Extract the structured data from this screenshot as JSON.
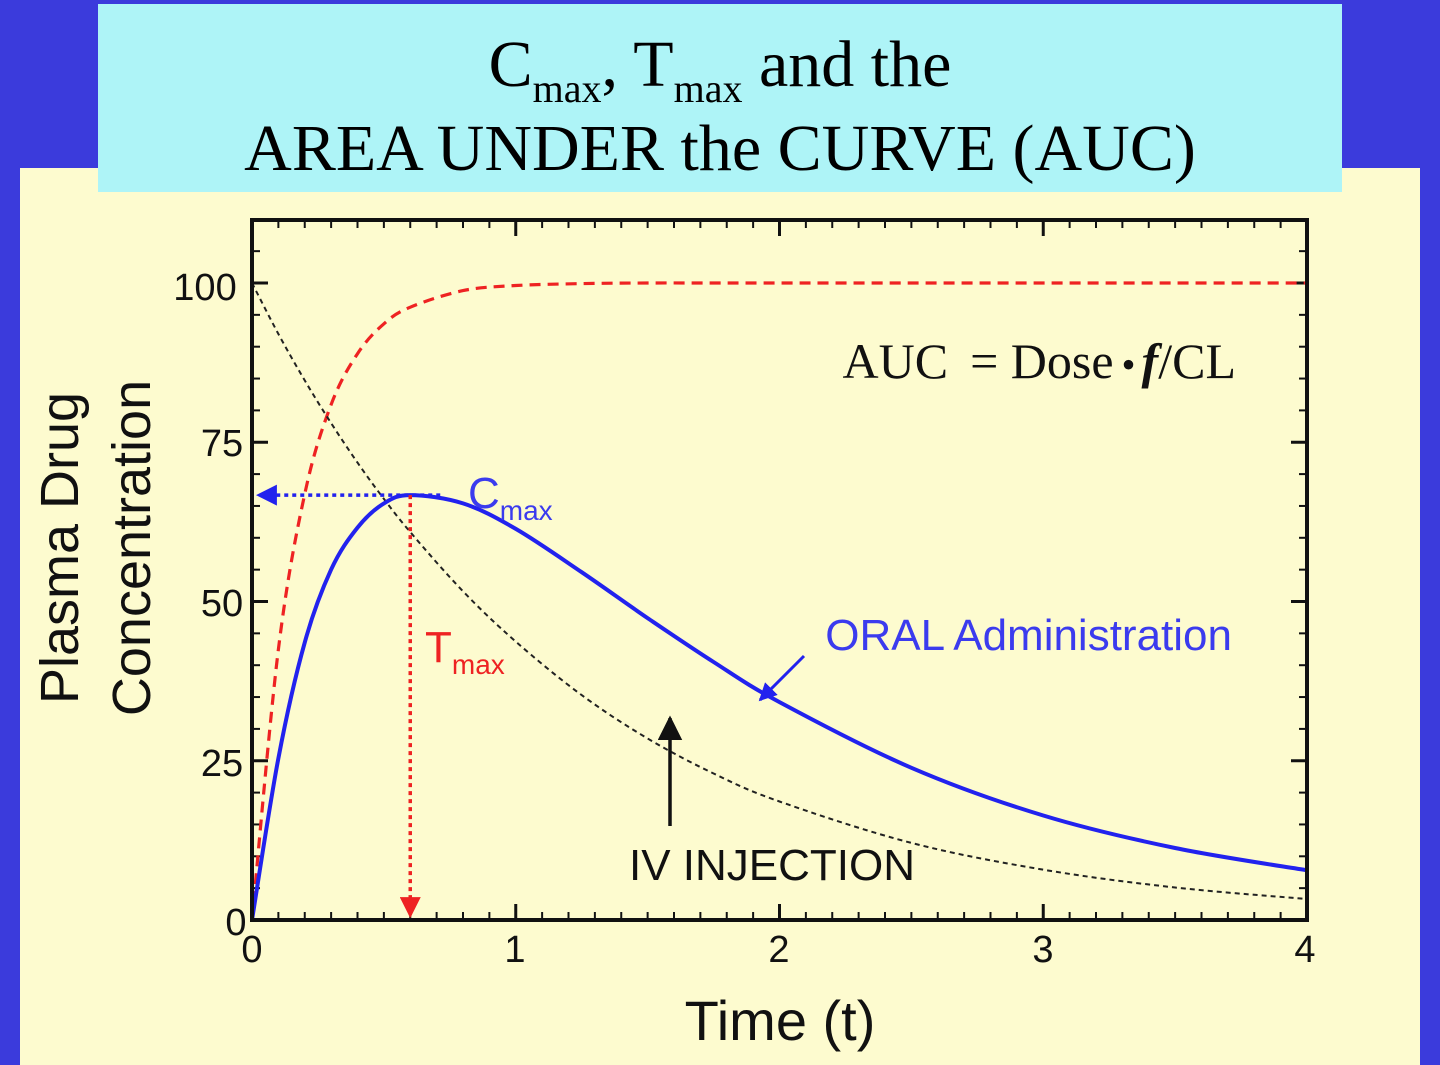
{
  "title": {
    "line1": {
      "c": "C",
      "c_sub": "max",
      "sep": ", ",
      "t": "T",
      "t_sub": "max",
      "rest": " and the"
    },
    "line2": "AREA UNDER the CURVE (AUC)"
  },
  "formula": {
    "lhs": "AUC",
    "eq": "= Dose",
    "bullet": "•",
    "f": "f",
    "rest": "/CL"
  },
  "colors": {
    "background": "#3b3bdc",
    "panel": "#fdfbcf",
    "title_box": "#aef4f7",
    "oral": "#2222ee",
    "iv": "#222222",
    "cumulative": "#ee2222",
    "cmax_label": "#3b3bee",
    "tmax_label": "#ee2222"
  },
  "chart_data": {
    "type": "line",
    "xlabel": "Time (t)",
    "ylabel_lines": [
      "Plasma Drug",
      "Concentration"
    ],
    "xlim": [
      0,
      4
    ],
    "ylim": [
      0,
      110
    ],
    "xticks": [
      0,
      1,
      2,
      3,
      4
    ],
    "yticks": [
      0,
      25,
      50,
      75,
      100
    ],
    "x": [
      0,
      0.1,
      0.2,
      0.3,
      0.4,
      0.5,
      0.6,
      0.8,
      1.0,
      1.25,
      1.5,
      1.75,
      2.0,
      2.5,
      3.0,
      3.5,
      4.0
    ],
    "series": [
      {
        "key": "oral",
        "style": "solid",
        "values": [
          0,
          25.4,
          43.6,
          55.0,
          61.6,
          65.4,
          66.7,
          65.4,
          61.4,
          54.6,
          47.4,
          40.5,
          34.2,
          23.9,
          16.4,
          11.3,
          7.8
        ]
      },
      {
        "key": "iv",
        "style": "dotted",
        "values": [
          100,
          92.0,
          84.7,
          78.0,
          71.8,
          66.1,
          60.9,
          51.6,
          43.7,
          35.3,
          28.5,
          23.0,
          18.6,
          12.1,
          7.9,
          5.1,
          3.3
        ]
      },
      {
        "key": "cumulative",
        "style": "dashed",
        "values": [
          0,
          42.5,
          66.9,
          80.9,
          88.9,
          93.6,
          96.2,
          98.8,
          99.6,
          99.9,
          100,
          100,
          100,
          100,
          100,
          100,
          100
        ]
      }
    ],
    "cmax": {
      "t": 0.6,
      "value": 66.7
    },
    "annotations": {
      "cmax": {
        "text": "C",
        "sub": "max"
      },
      "tmax": {
        "text": "T",
        "sub": "max"
      },
      "oral": "ORAL Administration",
      "iv": "IV INJECTION"
    }
  }
}
